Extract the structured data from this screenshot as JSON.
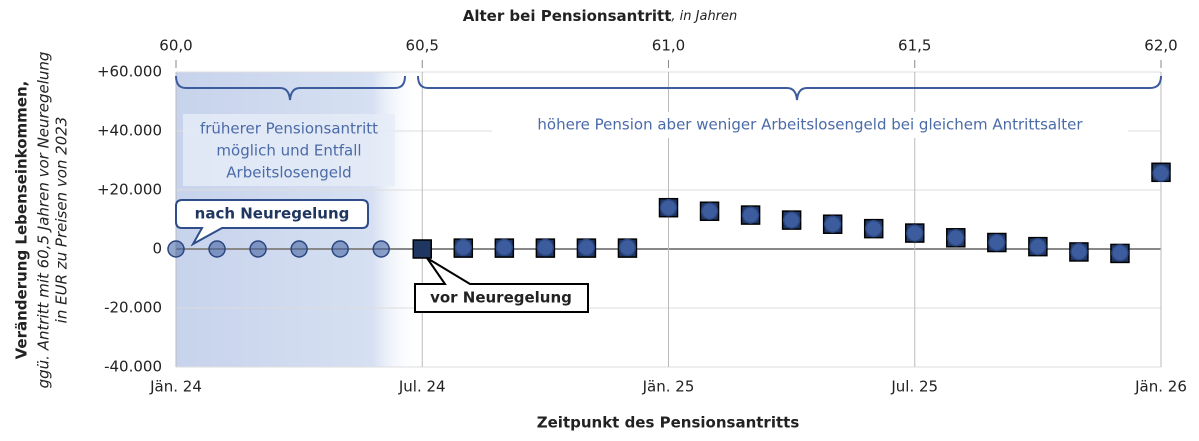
{
  "chart_data": {
    "type": "scatter",
    "title": "Alter bei Pensionsantritt",
    "title_suffix": ", in Jahren",
    "x_label": "Zeitpunkt des Pensionsantritts",
    "y_label": "Veränderung Lebenseinkommen,",
    "y_label_sub": [
      "ggü. Antritt mit 60,5 Jahren vor Neuregelung",
      "in EUR zu Preisen von  2023"
    ],
    "annotations": [
      {
        "text": [
          "früherer Pensionsantritt",
          "möglich und Entfall",
          "Arbeitslosengeld"
        ]
      },
      {
        "text": [
          "höhere Pension aber weniger Arbeitslosengeld bei gleichem Antrittsalter"
        ]
      }
    ],
    "xlim": [
      "2024-01",
      "2026-01"
    ],
    "xticks": [
      {
        "value": "2024-01",
        "label": "Jän. 24"
      },
      {
        "value": "2024-07",
        "label": "Jul. 24"
      },
      {
        "value": "2025-01",
        "label": "Jän. 25"
      },
      {
        "value": "2025-07",
        "label": "Jul. 25"
      },
      {
        "value": "2026-01",
        "label": "Jän. 26"
      }
    ],
    "x2lim": [
      60,
      62
    ],
    "x2ticks": [
      {
        "value": 60,
        "label": "60,0"
      },
      {
        "value": 60.5,
        "label": "60,5"
      },
      {
        "value": 61,
        "label": "61,0"
      },
      {
        "value": 61.5,
        "label": "61,5"
      },
      {
        "value": 62,
        "label": "62,0"
      }
    ],
    "ylim": [
      -40000,
      60000
    ],
    "yticks": [
      {
        "value": 60000,
        "label": "+60.000"
      },
      {
        "value": 40000,
        "label": "+40.000"
      },
      {
        "value": 20000,
        "label": "+20.000"
      },
      0,
      {
        "value": -20000,
        "label": "-20.000"
      },
      {
        "value": -40000,
        "label": "-40.000"
      }
    ],
    "grid": true,
    "series": [
      {
        "name": "vor Neuregelung",
        "color": "#1f3660",
        "marker": "square",
        "x": [
          "2024-07",
          "2024-08",
          "2024-09",
          "2024-10",
          "2024-11",
          "2024-12",
          "2025-01",
          "2025-02",
          "2025-03",
          "2025-04",
          "2025-05",
          "2025-06",
          "2025-07",
          "2025-08",
          "2025-09",
          "2025-10",
          "2025-11",
          "2025-12",
          "2026-01"
        ],
        "values": [
          0,
          300,
          300,
          300,
          300,
          300,
          14000,
          12800,
          11500,
          9800,
          8400,
          6900,
          5400,
          3800,
          2200,
          800,
          -1000,
          -1500,
          26000
        ]
      },
      {
        "name": "nach Neuregelung",
        "color": "#3d5c9e",
        "marker": "circle",
        "x": [
          "2024-01",
          "2024-02",
          "2024-03",
          "2024-04",
          "2024-05",
          "2024-06",
          "2024-08",
          "2024-09",
          "2024-10",
          "2024-11",
          "2024-12",
          "2025-01",
          "2025-02",
          "2025-03",
          "2025-04",
          "2025-05",
          "2025-06",
          "2025-07",
          "2025-08",
          "2025-09",
          "2025-10",
          "2025-11",
          "2025-12",
          "2026-01"
        ],
        "values": [
          0,
          0,
          0,
          0,
          0,
          0,
          500,
          500,
          500,
          500,
          500,
          14000,
          12800,
          11500,
          9800,
          8400,
          6900,
          5400,
          3800,
          2200,
          800,
          -900,
          -1300,
          25700
        ]
      }
    ]
  }
}
